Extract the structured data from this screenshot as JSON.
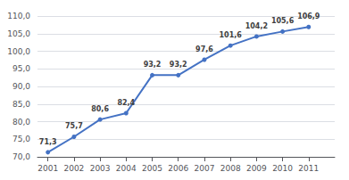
{
  "chart_data": {
    "type": "line",
    "x": [
      2001,
      2002,
      2003,
      2004,
      2005,
      2006,
      2007,
      2008,
      2009,
      2010,
      2011
    ],
    "values": [
      71.3,
      75.7,
      80.6,
      82.4,
      93.2,
      93.2,
      97.6,
      101.6,
      104.2,
      105.6,
      106.9
    ],
    "value_labels": [
      "71,3",
      "75,7",
      "80,6",
      "82,4",
      "93,2",
      "93,2",
      "97,6",
      "101,6",
      "104,2",
      "105,6",
      "106,9"
    ],
    "color": "#4472C4",
    "marker": "circle",
    "data_labels": true,
    "grid": true,
    "xlim": [
      2000.6,
      2012.0
    ],
    "xticks": [
      2001,
      2002,
      2003,
      2004,
      2005,
      2006,
      2007,
      2008,
      2009,
      2010,
      2011
    ],
    "ylim": [
      70.0,
      110.0
    ],
    "yticks": [
      {
        "value": 70.0,
        "label": "70,0"
      },
      {
        "value": 75.0,
        "label": "75,0"
      },
      {
        "value": 80.0,
        "label": "80,0"
      },
      {
        "value": 85.0,
        "label": "85,0"
      },
      {
        "value": 90.0,
        "label": "90,0"
      },
      {
        "value": 95.0,
        "label": "95,0"
      },
      {
        "value": 100.0,
        "label": "100,0"
      },
      {
        "value": 105.0,
        "label": "105,0"
      },
      {
        "value": 110.0,
        "label": "110,0"
      }
    ]
  }
}
